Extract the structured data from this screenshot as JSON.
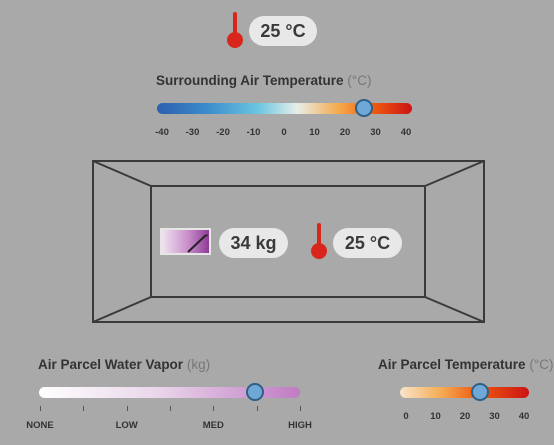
{
  "top": {
    "temperature": "25 °C"
  },
  "surrounding": {
    "title": "Surrounding Air Temperature",
    "unit": "(°C)",
    "ticks": [
      "-40",
      "-30",
      "-20",
      "-10",
      "0",
      "10",
      "20",
      "30",
      "40"
    ],
    "value": 25
  },
  "box": {
    "mass": "34 kg",
    "temperature": "25 °C"
  },
  "vapor": {
    "title": "Air Parcel Water Vapor",
    "unit": "(kg)",
    "ticks": [
      "NONE",
      "LOW",
      "MED",
      "HIGH"
    ],
    "value_fraction": 0.83
  },
  "parcel": {
    "title": "Air Parcel Temperature",
    "unit": "(°C)",
    "ticks": [
      "0",
      "10",
      "20",
      "30",
      "40"
    ],
    "value": 25
  },
  "colors": {
    "thermometer": "#d9261c",
    "knob": "#6fa8d6",
    "background": "#a9a9a9"
  },
  "icons": [
    "thermometer-icon",
    "air-parcel-icon"
  ]
}
